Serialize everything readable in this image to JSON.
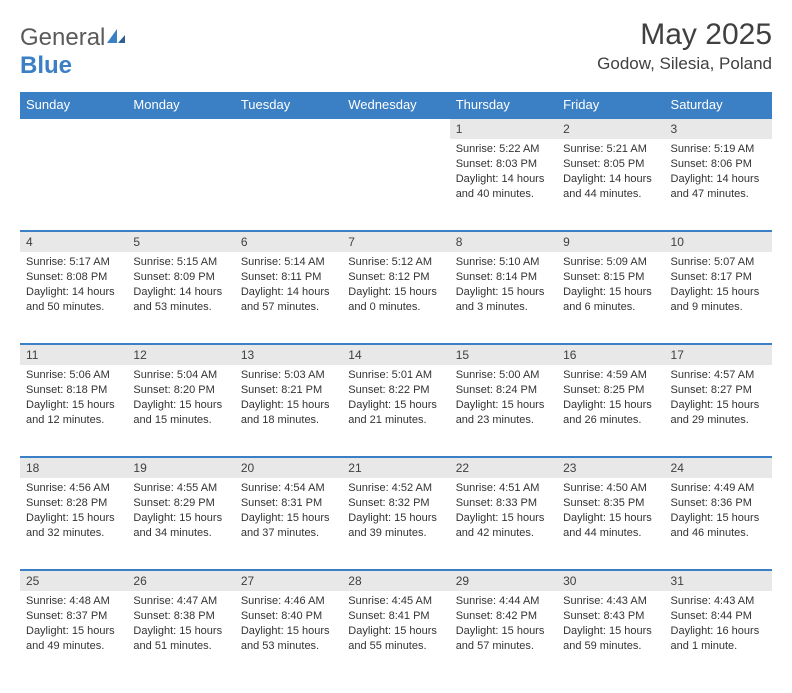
{
  "logo": {
    "text_a": "General",
    "text_b": "Blue"
  },
  "title": "May 2025",
  "location": "Godow, Silesia, Poland",
  "colors": {
    "header_bg": "#3b7fc4",
    "header_fg": "#ffffff",
    "daynum_bg": "#e8e8e8",
    "border": "#3b7fc4",
    "text": "#333333"
  },
  "weekdays": [
    "Sunday",
    "Monday",
    "Tuesday",
    "Wednesday",
    "Thursday",
    "Friday",
    "Saturday"
  ],
  "weeks": [
    [
      null,
      null,
      null,
      null,
      {
        "n": "1",
        "sunrise": "5:22 AM",
        "sunset": "8:03 PM",
        "daylight": "14 hours and 40 minutes."
      },
      {
        "n": "2",
        "sunrise": "5:21 AM",
        "sunset": "8:05 PM",
        "daylight": "14 hours and 44 minutes."
      },
      {
        "n": "3",
        "sunrise": "5:19 AM",
        "sunset": "8:06 PM",
        "daylight": "14 hours and 47 minutes."
      }
    ],
    [
      {
        "n": "4",
        "sunrise": "5:17 AM",
        "sunset": "8:08 PM",
        "daylight": "14 hours and 50 minutes."
      },
      {
        "n": "5",
        "sunrise": "5:15 AM",
        "sunset": "8:09 PM",
        "daylight": "14 hours and 53 minutes."
      },
      {
        "n": "6",
        "sunrise": "5:14 AM",
        "sunset": "8:11 PM",
        "daylight": "14 hours and 57 minutes."
      },
      {
        "n": "7",
        "sunrise": "5:12 AM",
        "sunset": "8:12 PM",
        "daylight": "15 hours and 0 minutes."
      },
      {
        "n": "8",
        "sunrise": "5:10 AM",
        "sunset": "8:14 PM",
        "daylight": "15 hours and 3 minutes."
      },
      {
        "n": "9",
        "sunrise": "5:09 AM",
        "sunset": "8:15 PM",
        "daylight": "15 hours and 6 minutes."
      },
      {
        "n": "10",
        "sunrise": "5:07 AM",
        "sunset": "8:17 PM",
        "daylight": "15 hours and 9 minutes."
      }
    ],
    [
      {
        "n": "11",
        "sunrise": "5:06 AM",
        "sunset": "8:18 PM",
        "daylight": "15 hours and 12 minutes."
      },
      {
        "n": "12",
        "sunrise": "5:04 AM",
        "sunset": "8:20 PM",
        "daylight": "15 hours and 15 minutes."
      },
      {
        "n": "13",
        "sunrise": "5:03 AM",
        "sunset": "8:21 PM",
        "daylight": "15 hours and 18 minutes."
      },
      {
        "n": "14",
        "sunrise": "5:01 AM",
        "sunset": "8:22 PM",
        "daylight": "15 hours and 21 minutes."
      },
      {
        "n": "15",
        "sunrise": "5:00 AM",
        "sunset": "8:24 PM",
        "daylight": "15 hours and 23 minutes."
      },
      {
        "n": "16",
        "sunrise": "4:59 AM",
        "sunset": "8:25 PM",
        "daylight": "15 hours and 26 minutes."
      },
      {
        "n": "17",
        "sunrise": "4:57 AM",
        "sunset": "8:27 PM",
        "daylight": "15 hours and 29 minutes."
      }
    ],
    [
      {
        "n": "18",
        "sunrise": "4:56 AM",
        "sunset": "8:28 PM",
        "daylight": "15 hours and 32 minutes."
      },
      {
        "n": "19",
        "sunrise": "4:55 AM",
        "sunset": "8:29 PM",
        "daylight": "15 hours and 34 minutes."
      },
      {
        "n": "20",
        "sunrise": "4:54 AM",
        "sunset": "8:31 PM",
        "daylight": "15 hours and 37 minutes."
      },
      {
        "n": "21",
        "sunrise": "4:52 AM",
        "sunset": "8:32 PM",
        "daylight": "15 hours and 39 minutes."
      },
      {
        "n": "22",
        "sunrise": "4:51 AM",
        "sunset": "8:33 PM",
        "daylight": "15 hours and 42 minutes."
      },
      {
        "n": "23",
        "sunrise": "4:50 AM",
        "sunset": "8:35 PM",
        "daylight": "15 hours and 44 minutes."
      },
      {
        "n": "24",
        "sunrise": "4:49 AM",
        "sunset": "8:36 PM",
        "daylight": "15 hours and 46 minutes."
      }
    ],
    [
      {
        "n": "25",
        "sunrise": "4:48 AM",
        "sunset": "8:37 PM",
        "daylight": "15 hours and 49 minutes."
      },
      {
        "n": "26",
        "sunrise": "4:47 AM",
        "sunset": "8:38 PM",
        "daylight": "15 hours and 51 minutes."
      },
      {
        "n": "27",
        "sunrise": "4:46 AM",
        "sunset": "8:40 PM",
        "daylight": "15 hours and 53 minutes."
      },
      {
        "n": "28",
        "sunrise": "4:45 AM",
        "sunset": "8:41 PM",
        "daylight": "15 hours and 55 minutes."
      },
      {
        "n": "29",
        "sunrise": "4:44 AM",
        "sunset": "8:42 PM",
        "daylight": "15 hours and 57 minutes."
      },
      {
        "n": "30",
        "sunrise": "4:43 AM",
        "sunset": "8:43 PM",
        "daylight": "15 hours and 59 minutes."
      },
      {
        "n": "31",
        "sunrise": "4:43 AM",
        "sunset": "8:44 PM",
        "daylight": "16 hours and 1 minute."
      }
    ]
  ],
  "labels": {
    "sunrise": "Sunrise: ",
    "sunset": "Sunset: ",
    "daylight": "Daylight: "
  }
}
